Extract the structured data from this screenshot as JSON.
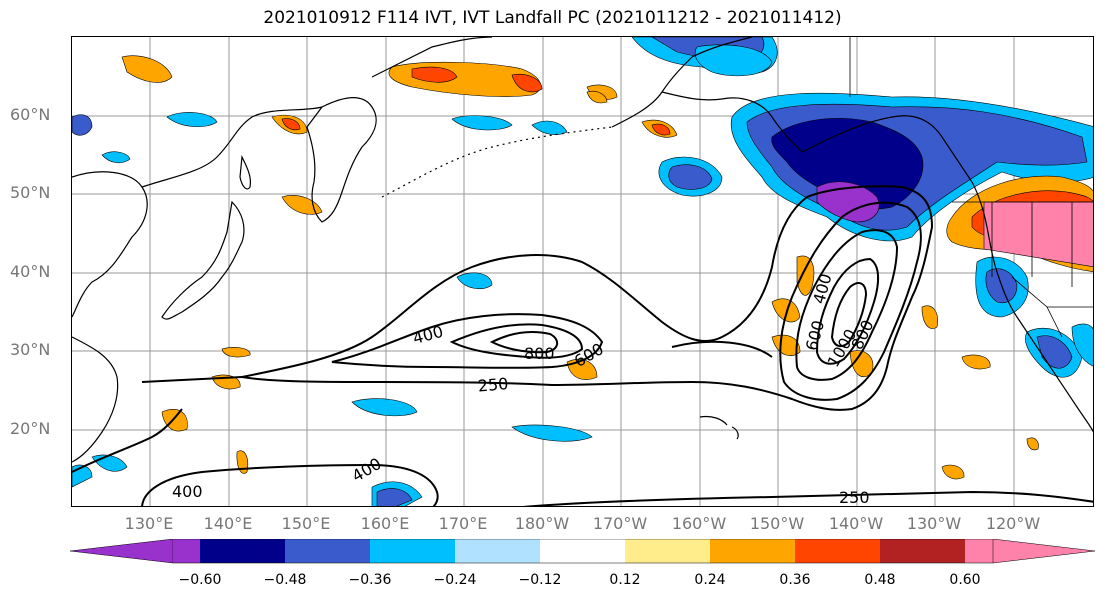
{
  "title": "2021010912 F114 IVT, IVT Landfall PC (2021011212 - 2021011412)",
  "latitude_labels": [
    "60°N",
    "50°N",
    "40°N",
    "30°N",
    "20°N"
  ],
  "longitude_labels": [
    "130°E",
    "140°E",
    "150°E",
    "160°E",
    "170°E",
    "180°W",
    "170°W",
    "160°W",
    "150°W",
    "140°W",
    "130°W",
    "120°W"
  ],
  "contour_labels": [
    "400",
    "800",
    "600",
    "250",
    "400",
    "600",
    "1000",
    "800",
    "400",
    "400",
    "250"
  ],
  "colorbar": {
    "ticks": [
      "−0.60",
      "−0.48",
      "−0.36",
      "−0.24",
      "−0.12",
      "0.12",
      "0.24",
      "0.36",
      "0.48",
      "0.60"
    ],
    "colors": [
      "#9932CC",
      "#00008B",
      "#3A5BCC",
      "#00BFFF",
      "#B0E2FF",
      "#FFFFFF",
      "#FFEC8B",
      "#FFA500",
      "#FF4500",
      "#B22222",
      "#FF82AB"
    ]
  }
}
